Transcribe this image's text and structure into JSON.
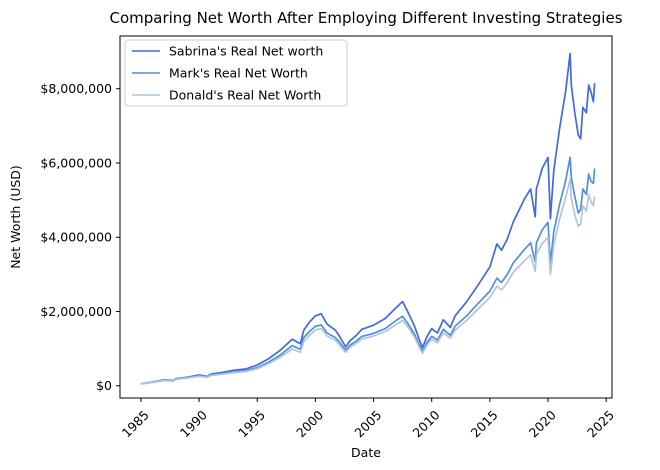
{
  "chart_data": {
    "type": "line",
    "title": "Comparing Net Worth After Employing Different Investing Strategies",
    "xlabel": "Date",
    "ylabel": "Net Worth (USD)",
    "xlim": [
      1983.2,
      2025.5
    ],
    "ylim": [
      -330000,
      9420000
    ],
    "x_ticks": [
      1985,
      1990,
      1995,
      2000,
      2005,
      2010,
      2015,
      2020,
      2025
    ],
    "x_tick_labels": [
      "1985",
      "1990",
      "1995",
      "2000",
      "2005",
      "2010",
      "2015",
      "2020",
      "2025"
    ],
    "y_ticks": [
      0,
      2000000,
      4000000,
      6000000,
      8000000
    ],
    "y_tick_labels": [
      "$0",
      "$2,000,000",
      "$4,000,000",
      "$6,000,000",
      "$8,000,000"
    ],
    "grid": false,
    "legend_position": "top-left",
    "series": [
      {
        "name": "Sabrina's Real Net worth",
        "color": "#4169e1",
        "x": [
          1985,
          1986,
          1987,
          1987.8,
          1988,
          1989,
          1990,
          1990.7,
          1991,
          1992,
          1993,
          1994,
          1995,
          1996,
          1997,
          1998,
          1998.7,
          1999,
          1999.5,
          2000,
          2000.5,
          2001,
          2001.7,
          2002,
          2002.6,
          2003,
          2003.5,
          2004,
          2005,
          2006,
          2007,
          2007.5,
          2008,
          2008.5,
          2009,
          2009.2,
          2009.6,
          2010,
          2010.5,
          2011,
          2011.6,
          2012,
          2013,
          2014,
          2015,
          2015.6,
          2016,
          2016.5,
          2017,
          2018,
          2018.5,
          2018.9,
          2019,
          2019.5,
          2020,
          2020.2,
          2020.5,
          2021,
          2021.5,
          2021.9,
          2022,
          2022.3,
          2022.6,
          2022.8,
          2023,
          2023.3,
          2023.5,
          2023.7,
          2023.9,
          2024
        ],
        "values": [
          50000,
          100000,
          160000,
          140000,
          190000,
          230000,
          290000,
          250000,
          310000,
          360000,
          420000,
          450000,
          560000,
          730000,
          960000,
          1250000,
          1130000,
          1500000,
          1720000,
          1880000,
          1940000,
          1660000,
          1500000,
          1370000,
          1050000,
          1220000,
          1350000,
          1520000,
          1630000,
          1810000,
          2120000,
          2270000,
          1950000,
          1620000,
          1180000,
          1030000,
          1330000,
          1540000,
          1420000,
          1780000,
          1570000,
          1880000,
          2260000,
          2720000,
          3200000,
          3820000,
          3650000,
          3950000,
          4400000,
          5050000,
          5300000,
          4550000,
          5300000,
          5850000,
          6150000,
          4500000,
          5800000,
          6950000,
          7900000,
          8950000,
          8100000,
          7350000,
          6750000,
          6650000,
          7500000,
          7350000,
          8100000,
          7900000,
          7650000,
          8150000
        ]
      },
      {
        "name": "Mark's Real Net Worth",
        "color": "#4f8fdf",
        "x": [
          1985,
          1986,
          1987,
          1987.8,
          1988,
          1989,
          1990,
          1990.7,
          1991,
          1992,
          1993,
          1994,
          1995,
          1996,
          1997,
          1998,
          1998.7,
          1999,
          1999.5,
          2000,
          2000.5,
          2001,
          2001.7,
          2002,
          2002.6,
          2003,
          2003.5,
          2004,
          2005,
          2006,
          2007,
          2007.5,
          2008,
          2008.5,
          2009,
          2009.2,
          2009.6,
          2010,
          2010.5,
          2011,
          2011.6,
          2012,
          2013,
          2014,
          2015,
          2015.6,
          2016,
          2016.5,
          2017,
          2018,
          2018.5,
          2018.9,
          2019,
          2019.5,
          2020,
          2020.2,
          2020.5,
          2021,
          2021.5,
          2021.9,
          2022,
          2022.3,
          2022.6,
          2022.8,
          2023,
          2023.3,
          2023.5,
          2023.7,
          2023.9,
          2024
        ],
        "values": [
          50000,
          95000,
          150000,
          135000,
          180000,
          220000,
          270000,
          240000,
          290000,
          330000,
          380000,
          410000,
          490000,
          640000,
          830000,
          1080000,
          980000,
          1300000,
          1460000,
          1600000,
          1640000,
          1420000,
          1300000,
          1200000,
          960000,
          1100000,
          1200000,
          1330000,
          1410000,
          1540000,
          1770000,
          1870000,
          1650000,
          1400000,
          1050000,
          930000,
          1170000,
          1330000,
          1230000,
          1520000,
          1360000,
          1600000,
          1880000,
          2220000,
          2550000,
          2900000,
          2780000,
          3000000,
          3300000,
          3680000,
          3850000,
          3350000,
          3850000,
          4200000,
          4400000,
          3300000,
          4150000,
          4900000,
          5500000,
          6150000,
          5600000,
          5100000,
          4650000,
          4750000,
          5300000,
          5150000,
          5700000,
          5500000,
          5450000,
          5850000
        ]
      },
      {
        "name": "Donald's Real Net Worth",
        "color": "#b0c4de",
        "x": [
          1985,
          1986,
          1987,
          1987.8,
          1988,
          1989,
          1990,
          1990.7,
          1991,
          1992,
          1993,
          1994,
          1995,
          1996,
          1997,
          1998,
          1998.7,
          1999,
          1999.5,
          2000,
          2000.5,
          2001,
          2001.7,
          2002,
          2002.6,
          2003,
          2003.5,
          2004,
          2005,
          2006,
          2007,
          2007.5,
          2008,
          2008.5,
          2009,
          2009.2,
          2009.6,
          2010,
          2010.5,
          2011,
          2011.6,
          2012,
          2013,
          2014,
          2015,
          2015.6,
          2016,
          2016.5,
          2017,
          2018,
          2018.5,
          2018.9,
          2019,
          2019.5,
          2020,
          2020.2,
          2020.5,
          2021,
          2021.5,
          2021.9,
          2022,
          2022.3,
          2022.6,
          2022.8,
          2023,
          2023.3,
          2023.5,
          2023.7,
          2023.9,
          2024
        ],
        "values": [
          50000,
          90000,
          140000,
          125000,
          170000,
          210000,
          255000,
          225000,
          275000,
          310000,
          355000,
          385000,
          460000,
          600000,
          770000,
          990000,
          900000,
          1200000,
          1360000,
          1500000,
          1540000,
          1340000,
          1230000,
          1130000,
          900000,
          1040000,
          1140000,
          1260000,
          1340000,
          1460000,
          1660000,
          1760000,
          1560000,
          1320000,
          990000,
          880000,
          1100000,
          1250000,
          1160000,
          1430000,
          1280000,
          1500000,
          1760000,
          2070000,
          2380000,
          2680000,
          2580000,
          2780000,
          3050000,
          3380000,
          3530000,
          3080000,
          3530000,
          3830000,
          4000000,
          3000000,
          3800000,
          4500000,
          5050000,
          5550000,
          5050000,
          4600000,
          4300000,
          4350000,
          4850000,
          4700000,
          5150000,
          4950000,
          4850000,
          5100000
        ]
      }
    ]
  }
}
